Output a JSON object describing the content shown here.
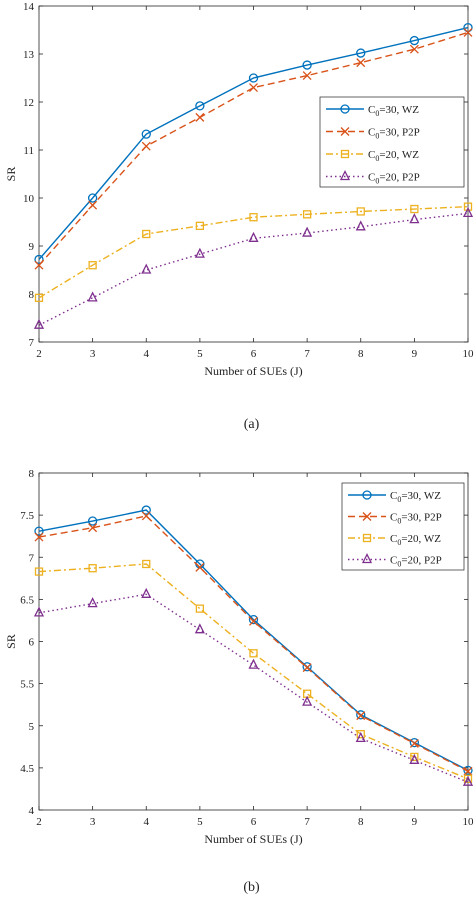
{
  "chart_data": [
    {
      "type": "line",
      "caption": "(a)",
      "xlabel": "Number of SUEs (J)",
      "ylabel": "SR",
      "x": [
        2,
        3,
        4,
        5,
        6,
        7,
        8,
        9,
        10
      ],
      "xlim": [
        2,
        10
      ],
      "ylim": [
        7,
        14
      ],
      "xticks": [
        "2",
        "3",
        "4",
        "5",
        "6",
        "7",
        "8",
        "9",
        "10"
      ],
      "yticks": [
        "7",
        "8",
        "9",
        "10",
        "11",
        "12",
        "13",
        "14"
      ],
      "legend_position": "right",
      "series": [
        {
          "name": "C0=30, WZ",
          "name_main": "C",
          "name_sub": "0",
          "name_rest": "=30, WZ",
          "color": "#0072BD",
          "dash": "solid",
          "marker": "circle",
          "values": [
            8.72,
            10.0,
            11.33,
            11.92,
            12.5,
            12.77,
            13.02,
            13.28,
            13.55
          ]
        },
        {
          "name": "C0=30, P2P",
          "name_main": "C",
          "name_sub": "0",
          "name_rest": "=30, P2P",
          "color": "#D95319",
          "dash": "dashed",
          "marker": "x",
          "values": [
            8.6,
            9.85,
            11.08,
            11.68,
            12.3,
            12.55,
            12.82,
            13.1,
            13.45
          ]
        },
        {
          "name": "C0=20, WZ",
          "name_main": "C",
          "name_sub": "0",
          "name_rest": "=20, WZ",
          "color": "#EDB120",
          "dash": "dashdot",
          "marker": "square",
          "values": [
            7.92,
            8.6,
            9.25,
            9.42,
            9.6,
            9.66,
            9.72,
            9.77,
            9.82
          ]
        },
        {
          "name": "C0=20, P2P",
          "name_main": "C",
          "name_sub": "0",
          "name_rest": "=20, P2P",
          "color": "#7E2F8E",
          "dash": "dotted",
          "marker": "triangle",
          "values": [
            7.35,
            7.92,
            8.5,
            8.83,
            9.16,
            9.27,
            9.4,
            9.55,
            9.68
          ]
        }
      ]
    },
    {
      "type": "line",
      "caption": "(b)",
      "xlabel": "Number of SUEs (J)",
      "ylabel": "SR",
      "x": [
        2,
        3,
        4,
        5,
        6,
        7,
        8,
        9,
        10
      ],
      "xlim": [
        2,
        10
      ],
      "ylim": [
        4,
        8
      ],
      "xticks": [
        "2",
        "3",
        "4",
        "5",
        "6",
        "7",
        "8",
        "9",
        "10"
      ],
      "yticks": [
        "4",
        "4.5",
        "5",
        "5.5",
        "6",
        "6.5",
        "7",
        "7.5",
        "8"
      ],
      "legend_position": "top-right",
      "series": [
        {
          "name": "C0=30, WZ",
          "name_main": "C",
          "name_sub": "0",
          "name_rest": "=30, WZ",
          "color": "#0072BD",
          "dash": "solid",
          "marker": "circle",
          "values": [
            7.31,
            7.43,
            7.56,
            6.92,
            6.26,
            5.7,
            5.13,
            4.8,
            4.47
          ]
        },
        {
          "name": "C0=30, P2P",
          "name_main": "C",
          "name_sub": "0",
          "name_rest": "=30, P2P",
          "color": "#D95319",
          "dash": "dashed",
          "marker": "x",
          "values": [
            7.24,
            7.35,
            7.49,
            6.88,
            6.24,
            5.69,
            5.12,
            4.79,
            4.46
          ]
        },
        {
          "name": "C0=20, WZ",
          "name_main": "C",
          "name_sub": "0",
          "name_rest": "=20, WZ",
          "color": "#EDB120",
          "dash": "dashdot",
          "marker": "square",
          "values": [
            6.83,
            6.87,
            6.92,
            6.39,
            5.86,
            5.38,
            4.9,
            4.63,
            4.37
          ]
        },
        {
          "name": "C0=20, P2P",
          "name_main": "C",
          "name_sub": "0",
          "name_rest": "=20, P2P",
          "color": "#7E2F8E",
          "dash": "dotted",
          "marker": "triangle",
          "values": [
            6.34,
            6.45,
            6.56,
            6.14,
            5.72,
            5.28,
            4.85,
            4.59,
            4.33
          ]
        }
      ]
    }
  ]
}
